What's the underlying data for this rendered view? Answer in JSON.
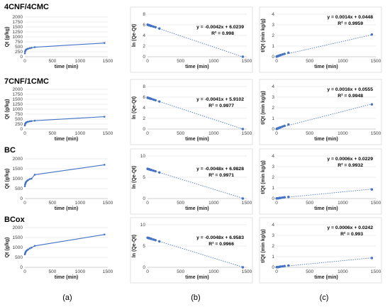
{
  "captions": [
    "(a)",
    "(b)",
    "(c)"
  ],
  "rows": [
    {
      "title": "4CNF/4CMC"
    },
    {
      "title": "7CNF/1CMC"
    },
    {
      "title": "BC"
    },
    {
      "title": "BCox"
    }
  ],
  "chart_data": [
    {
      "type": "line",
      "row": 0,
      "column": "a",
      "title": "4CNF/4CMC",
      "xlabel": "time (min)",
      "ylabel": "Qt (g/kg)",
      "xlim": [
        0,
        1500
      ],
      "ylim": [
        0,
        2000
      ],
      "xticks": [
        0,
        500,
        1000,
        1500
      ],
      "yticks": [
        0,
        250,
        500,
        750,
        1000,
        1250,
        1500,
        1750,
        2000
      ],
      "grid": "horizontal",
      "series": [
        {
          "x": [
            1,
            5,
            10,
            15,
            20,
            30,
            45,
            60,
            90,
            120,
            180,
            1440
          ],
          "y": [
            170,
            260,
            300,
            330,
            350,
            370,
            390,
            410,
            430,
            450,
            480,
            690
          ]
        }
      ]
    },
    {
      "type": "scatter",
      "row": 0,
      "column": "b",
      "xlabel": "time (min)",
      "ylabel": "ln (Qe-Qt)",
      "xlim": [
        0,
        1500
      ],
      "ylim": [
        0,
        8
      ],
      "xticks": [
        0,
        500,
        1000,
        1500
      ],
      "yticks": [
        0,
        2,
        4,
        6,
        8
      ],
      "grid": "horizontal",
      "equation": "y = -0.0042x + 6.0239",
      "r2": "R² = 0.998",
      "trendline": {
        "slope": -0.0042,
        "intercept": 6.0239
      },
      "series": [
        {
          "x": [
            1,
            5,
            10,
            15,
            20,
            30,
            45,
            60,
            90,
            120,
            180,
            1440
          ],
          "y": [
            6.02,
            6.0,
            5.98,
            5.96,
            5.93,
            5.9,
            5.84,
            5.77,
            5.66,
            5.55,
            5.3,
            0.0
          ]
        }
      ]
    },
    {
      "type": "scatter",
      "row": 0,
      "column": "c",
      "xlabel": "time (min)",
      "ylabel": "t/Qt (min kg/g)",
      "xlim": [
        0,
        1500
      ],
      "ylim": [
        0,
        4
      ],
      "xticks": [
        0,
        500,
        1000,
        1500
      ],
      "yticks": [
        0,
        1,
        2,
        3,
        4
      ],
      "grid": "horizontal",
      "equation": "y = 0.0014x + 0.0448",
      "r2": "R² = 0.9959",
      "trendline": {
        "slope": 0.0014,
        "intercept": 0.0448
      },
      "series": [
        {
          "x": [
            1,
            5,
            10,
            15,
            20,
            30,
            45,
            60,
            90,
            120,
            180,
            1440
          ],
          "y": [
            0.01,
            0.02,
            0.03,
            0.05,
            0.06,
            0.08,
            0.12,
            0.15,
            0.21,
            0.27,
            0.38,
            2.09
          ]
        }
      ]
    },
    {
      "type": "line",
      "row": 1,
      "column": "a",
      "title": "7CNF/1CMC",
      "xlabel": "time (min)",
      "ylabel": "Qt (g/kg)",
      "xlim": [
        0,
        1500
      ],
      "ylim": [
        0,
        2000
      ],
      "xticks": [
        0,
        500,
        1000,
        1500
      ],
      "yticks": [
        0,
        250,
        500,
        750,
        1000,
        1250,
        1500,
        1750,
        2000
      ],
      "grid": "horizontal",
      "series": [
        {
          "x": [
            1,
            5,
            10,
            15,
            20,
            30,
            45,
            60,
            90,
            120,
            180,
            1440
          ],
          "y": [
            180,
            250,
            280,
            300,
            320,
            340,
            360,
            370,
            390,
            400,
            420,
            620
          ]
        }
      ]
    },
    {
      "type": "scatter",
      "row": 1,
      "column": "b",
      "xlabel": "time (min)",
      "ylabel": "ln (Qe-Qt)",
      "xlim": [
        0,
        1500
      ],
      "ylim": [
        0,
        8
      ],
      "xticks": [
        0,
        500,
        1000,
        1500
      ],
      "yticks": [
        0,
        2,
        4,
        6,
        8
      ],
      "grid": "horizontal",
      "equation": "y = -0.0041x + 5.9102",
      "r2": "R² = 0.9977",
      "trendline": {
        "slope": -0.0041,
        "intercept": 5.9102
      },
      "series": [
        {
          "x": [
            1,
            5,
            10,
            15,
            20,
            30,
            45,
            60,
            90,
            120,
            180,
            1440
          ],
          "y": [
            5.9,
            5.88,
            5.86,
            5.84,
            5.82,
            5.78,
            5.72,
            5.66,
            5.54,
            5.42,
            5.18,
            0.0
          ]
        }
      ]
    },
    {
      "type": "scatter",
      "row": 1,
      "column": "c",
      "xlabel": "time (min)",
      "ylabel": "t/Qt (min kg/g)",
      "xlim": [
        0,
        1500
      ],
      "ylim": [
        0,
        4
      ],
      "xticks": [
        0,
        500,
        1000,
        1500
      ],
      "yticks": [
        0,
        1,
        2,
        3,
        4
      ],
      "grid": "horizontal",
      "equation": "y = 0.0016x + 0.0555",
      "r2": "R² = 0.9948",
      "trendline": {
        "slope": 0.0016,
        "intercept": 0.0555
      },
      "series": [
        {
          "x": [
            1,
            5,
            10,
            15,
            20,
            30,
            45,
            60,
            90,
            120,
            180,
            1440
          ],
          "y": [
            0.01,
            0.02,
            0.04,
            0.05,
            0.06,
            0.09,
            0.13,
            0.16,
            0.23,
            0.3,
            0.43,
            2.32
          ]
        }
      ]
    },
    {
      "type": "line",
      "row": 2,
      "column": "a",
      "title": "BC",
      "xlabel": "time (min)",
      "ylabel": "Qt (g/kg)",
      "xlim": [
        0,
        1500
      ],
      "ylim": [
        0,
        2000
      ],
      "xticks": [
        0,
        500,
        1000,
        1500
      ],
      "yticks": [
        0,
        500,
        1000,
        1500,
        2000
      ],
      "grid": "horizontal",
      "series": [
        {
          "x": [
            1,
            5,
            10,
            15,
            20,
            30,
            45,
            60,
            90,
            120,
            180,
            1440
          ],
          "y": [
            620,
            700,
            750,
            790,
            820,
            860,
            900,
            930,
            980,
            1000,
            1200,
            1700
          ]
        }
      ]
    },
    {
      "type": "scatter",
      "row": 2,
      "column": "b",
      "xlabel": "time (min)",
      "ylabel": "ln (Qe-Qt)",
      "xlim": [
        0,
        1500
      ],
      "ylim": [
        0,
        10
      ],
      "xticks": [
        0,
        500,
        1000,
        1500
      ],
      "yticks": [
        0,
        5,
        10
      ],
      "grid": "horizontal",
      "equation": "y = -0.0048x + 6.9828",
      "r2": "R² = 0.9971",
      "trendline": {
        "slope": -0.0048,
        "intercept": 6.9828
      },
      "series": [
        {
          "x": [
            1,
            5,
            10,
            15,
            20,
            30,
            45,
            60,
            90,
            120,
            180,
            1440
          ],
          "y": [
            6.98,
            6.96,
            6.94,
            6.91,
            6.88,
            6.84,
            6.76,
            6.69,
            6.55,
            6.41,
            6.12,
            0.0
          ]
        }
      ]
    },
    {
      "type": "scatter",
      "row": 2,
      "column": "c",
      "xlabel": "time (min)",
      "ylabel": "t/Qt (min kg/g)",
      "xlim": [
        0,
        1500
      ],
      "ylim": [
        0,
        4
      ],
      "xticks": [
        0,
        500,
        1000,
        1500
      ],
      "yticks": [
        0,
        1,
        2,
        3,
        4
      ],
      "grid": "horizontal",
      "equation": "y = 0.0006x + 0.0229",
      "r2": "R² = 0.9932",
      "trendline": {
        "slope": 0.0006,
        "intercept": 0.0229
      },
      "series": [
        {
          "x": [
            1,
            5,
            10,
            15,
            20,
            30,
            45,
            60,
            90,
            120,
            180,
            1440
          ],
          "y": [
            0.01,
            0.01,
            0.01,
            0.02,
            0.02,
            0.03,
            0.05,
            0.06,
            0.09,
            0.12,
            0.15,
            0.85
          ]
        }
      ]
    },
    {
      "type": "line",
      "row": 3,
      "column": "a",
      "title": "BCox",
      "xlabel": "time (min)",
      "ylabel": "Qt (g/kg)",
      "xlim": [
        0,
        1500
      ],
      "ylim": [
        0,
        2000
      ],
      "xticks": [
        0,
        500,
        1000,
        1500
      ],
      "yticks": [
        0,
        500,
        1000,
        1500,
        2000
      ],
      "grid": "horizontal",
      "series": [
        {
          "x": [
            1,
            5,
            10,
            15,
            20,
            30,
            45,
            60,
            90,
            120,
            180,
            1440
          ],
          "y": [
            650,
            700,
            740,
            770,
            800,
            830,
            870,
            900,
            950,
            990,
            1080,
            1650
          ]
        }
      ]
    },
    {
      "type": "scatter",
      "row": 3,
      "column": "b",
      "xlabel": "time (min)",
      "ylabel": "ln (Qe-Qt)",
      "xlim": [
        0,
        1500
      ],
      "ylim": [
        0,
        10
      ],
      "xticks": [
        0,
        500,
        1000,
        1500
      ],
      "yticks": [
        0,
        5,
        10
      ],
      "grid": "horizontal",
      "equation": "y = -0.0048x + 6.9583",
      "r2": "R² = 0.9966",
      "trendline": {
        "slope": -0.0048,
        "intercept": 6.9583
      },
      "series": [
        {
          "x": [
            1,
            5,
            10,
            15,
            20,
            30,
            45,
            60,
            90,
            120,
            180,
            1440
          ],
          "y": [
            6.95,
            6.93,
            6.91,
            6.88,
            6.86,
            6.82,
            6.74,
            6.67,
            6.53,
            6.38,
            6.09,
            0.0
          ]
        }
      ]
    },
    {
      "type": "scatter",
      "row": 3,
      "column": "c",
      "xlabel": "time (min)",
      "ylabel": "t/Qt (min kg/g)",
      "xlim": [
        0,
        1500
      ],
      "ylim": [
        0,
        4
      ],
      "xticks": [
        0,
        500,
        1000,
        1500
      ],
      "yticks": [
        0,
        1,
        2,
        3,
        4
      ],
      "grid": "horizontal",
      "equation": "y = 0.0006x + 0.0242",
      "r2": "R² = 0.993",
      "trendline": {
        "slope": 0.0006,
        "intercept": 0.0242
      },
      "series": [
        {
          "x": [
            1,
            5,
            10,
            15,
            20,
            30,
            45,
            60,
            90,
            120,
            180,
            1440
          ],
          "y": [
            0.01,
            0.01,
            0.01,
            0.02,
            0.02,
            0.03,
            0.05,
            0.07,
            0.09,
            0.12,
            0.17,
            0.87
          ]
        }
      ]
    }
  ]
}
